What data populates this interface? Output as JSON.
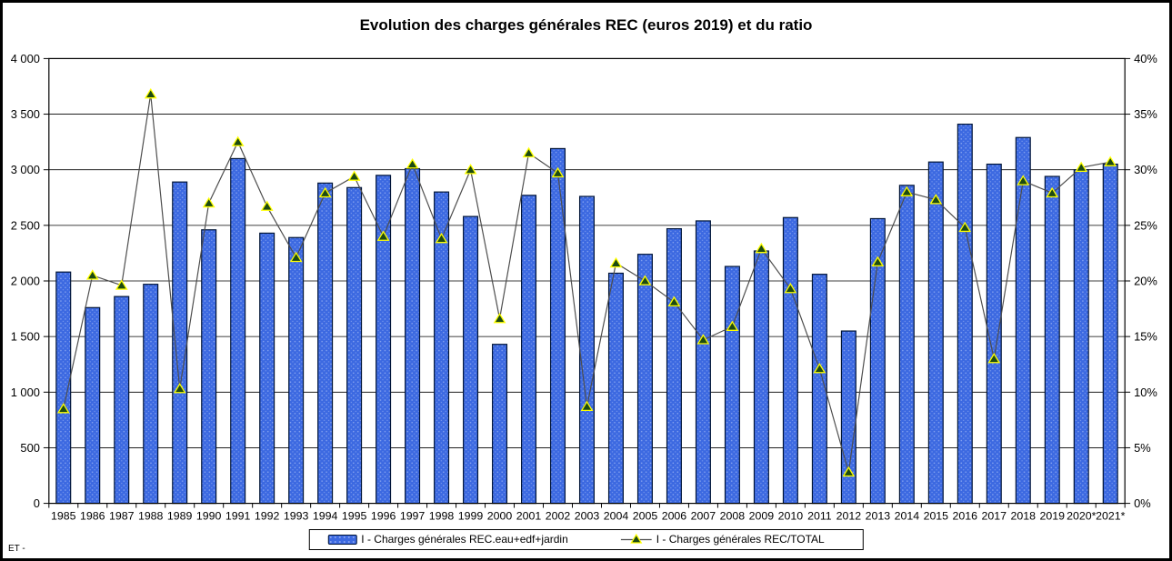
{
  "footer_note": "ET -",
  "chart_data": {
    "type": "bar+line",
    "title": "Evolution des charges générales REC (euros 2019) et du ratio",
    "categories": [
      "1985",
      "1986",
      "1987",
      "1988",
      "1989",
      "1990",
      "1991",
      "1992",
      "1993",
      "1994",
      "1995",
      "1996",
      "1997",
      "1998",
      "1999",
      "2000",
      "2001",
      "2002",
      "2003",
      "2004",
      "2005",
      "2006",
      "2007",
      "2008",
      "2009",
      "2010",
      "2011",
      "2012",
      "2013",
      "2014",
      "2015",
      "2016",
      "2017",
      "2018",
      "2019",
      "2020*",
      "2021*"
    ],
    "series": [
      {
        "name": "I - Charges générales REC.eau+edf+jardin",
        "type": "bar",
        "axis": "left",
        "values": [
          2080,
          1760,
          1860,
          1970,
          2890,
          2460,
          3100,
          2430,
          2390,
          2880,
          2840,
          2950,
          3010,
          2800,
          2580,
          1430,
          2770,
          3190,
          2760,
          2070,
          2240,
          2470,
          2540,
          2130,
          2270,
          2570,
          2060,
          1550,
          2560,
          2860,
          3070,
          3410,
          3050,
          3290,
          2940,
          3000,
          3050
        ]
      },
      {
        "name": "I - Charges générales REC/TOTAL",
        "type": "line",
        "axis": "right",
        "unit": "%",
        "values": [
          8.5,
          20.5,
          19.6,
          36.8,
          10.3,
          27.0,
          32.5,
          26.7,
          22.1,
          27.9,
          29.4,
          24.0,
          30.5,
          23.8,
          30.0,
          16.6,
          31.5,
          29.7,
          8.7,
          21.6,
          20.0,
          18.1,
          14.7,
          15.9,
          22.9,
          19.3,
          12.1,
          2.8,
          21.7,
          28.0,
          27.3,
          24.8,
          13.0,
          29.0,
          27.9,
          30.2,
          30.7
        ]
      }
    ],
    "left_axis": {
      "min": 0,
      "max": 4000,
      "step": 500,
      "tick_labels": [
        "0",
        "500",
        "1 000",
        "1 500",
        "2 000",
        "2 500",
        "3 000",
        "3 500",
        "4 000"
      ]
    },
    "right_axis": {
      "min": 0,
      "max": 40,
      "step": 5,
      "tick_labels": [
        "0%",
        "5%",
        "10%",
        "15%",
        "20%",
        "25%",
        "30%",
        "35%",
        "40%"
      ]
    },
    "grid": true,
    "legend_position": "bottom",
    "colors": {
      "bar_fill": "#3c69e1",
      "bar_dot": "#8aa6f0",
      "bar_stroke": "#001437",
      "line": "#4d4d4d",
      "marker_fill": "#1c4a12",
      "marker_stroke": "#ffff00",
      "grid": "#000000",
      "text": "#000000"
    }
  }
}
